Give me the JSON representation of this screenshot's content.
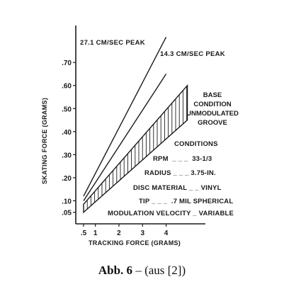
{
  "chart_data": {
    "type": "line",
    "xlabel": "TRACKING FORCE (GRAMS)",
    "ylabel": "SKATING FORCE (GRAMS)",
    "x_ticks": [
      ".5",
      "1",
      "2",
      "3",
      "4"
    ],
    "x_tick_values": [
      0.5,
      1,
      2,
      3,
      4
    ],
    "y_ticks": [
      ".05",
      ".10",
      ".20",
      ".30",
      ".40",
      ".50",
      ".60",
      ".70"
    ],
    "y_tick_values": [
      0.05,
      0.1,
      0.2,
      0.3,
      0.4,
      0.5,
      0.6,
      0.7
    ],
    "xlim": [
      0.2,
      5.3
    ],
    "ylim": [
      0.0,
      0.86
    ],
    "grid": false,
    "series": [
      {
        "name": "27.1 CM/SEC PEAK",
        "x": [
          0.5,
          4.0
        ],
        "y": [
          0.12,
          0.81
        ]
      },
      {
        "name": "14.3 CM/SEC PEAK",
        "x": [
          0.5,
          4.0
        ],
        "y": [
          0.1,
          0.65
        ]
      }
    ],
    "band": {
      "label": [
        "BASE",
        "CONDITION",
        "UNMODULATED",
        "GROOVE"
      ],
      "x": [
        0.5,
        4.9
      ],
      "upper": [
        0.085,
        0.6
      ],
      "lower": [
        0.05,
        0.45
      ],
      "hatch": "vertical"
    },
    "conditions": {
      "title": "CONDITIONS",
      "lines": [
        "RPM  _ _ _  33-1/3",
        "RADIUS _ _ _ 3.75-IN.",
        "DISC MATERIAL _ _ VINYL",
        "TIP _ _ _  .7 MIL SPHERICAL",
        "MODULATION VELOCITY _ VARIABLE"
      ]
    }
  },
  "caption": {
    "label": "Abb. 6",
    "text": " – (aus [2])"
  },
  "colors": {
    "ink": "#1a1a1a"
  }
}
